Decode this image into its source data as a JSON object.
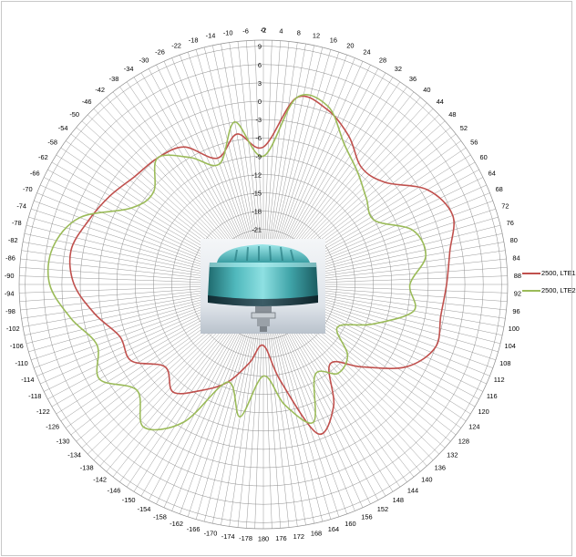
{
  "chart_data": {
    "type": "polar-line",
    "angle_labels": [
      "0",
      "4",
      "8",
      "12",
      "16",
      "20",
      "24",
      "28",
      "32",
      "36",
      "40",
      "44",
      "48",
      "52",
      "56",
      "60",
      "64",
      "68",
      "72",
      "76",
      "80",
      "84",
      "88",
      "92",
      "96",
      "100",
      "104",
      "108",
      "112",
      "116",
      "120",
      "124",
      "128",
      "132",
      "136",
      "140",
      "144",
      "148",
      "152",
      "156",
      "160",
      "164",
      "168",
      "172",
      "176",
      "180",
      "-178",
      "-174",
      "-170",
      "-166",
      "-162",
      "-158",
      "-154",
      "-150",
      "-146",
      "-142",
      "-138",
      "-134",
      "-130",
      "-126",
      "-122",
      "-118",
      "-114",
      "-110",
      "-106",
      "-102",
      "-98",
      "-94",
      "-90",
      "-86",
      "-82",
      "-78",
      "-74",
      "-70",
      "-66",
      "-62",
      "-58",
      "-54",
      "-50",
      "-46",
      "-42",
      "-38",
      "-34",
      "-30",
      "-26",
      "-22",
      "-18",
      "-14",
      "-10",
      "-6",
      "-2"
    ],
    "radial_ticks": [
      "9",
      "6",
      "3",
      "0",
      "-3",
      "-6",
      "-9",
      "-12",
      "-15",
      "-18",
      "-21"
    ],
    "radial_range": [
      -30,
      10
    ],
    "grid": true,
    "legend_position": "right",
    "series": [
      {
        "name": "2500, LTE1",
        "color": "#c0504d",
        "theta": [
          0,
          10,
          20,
          30,
          40,
          50,
          60,
          70,
          80,
          90,
          100,
          110,
          120,
          130,
          140,
          150,
          160,
          170,
          180,
          190,
          200,
          210,
          220,
          230,
          240,
          250,
          260,
          270,
          280,
          290,
          300,
          310,
          320,
          330,
          340,
          350,
          360
        ],
        "r": [
          -7.5,
          1,
          0.5,
          -2,
          -5,
          -4,
          1,
          3,
          1,
          0,
          -0.5,
          0,
          -3,
          -9,
          -13,
          -7,
          -4,
          -14,
          -20,
          -17,
          -13,
          -10,
          -7,
          -9,
          -5,
          -5,
          -2,
          1,
          2,
          0.5,
          -1,
          -2.5,
          -3,
          -4,
          -8,
          -5,
          -7.5
        ]
      },
      {
        "name": "2500, LTE2",
        "color": "#9bbb59",
        "theta": [
          0,
          10,
          20,
          30,
          40,
          50,
          60,
          70,
          80,
          90,
          100,
          110,
          120,
          130,
          140,
          150,
          160,
          170,
          180,
          190,
          200,
          210,
          220,
          230,
          240,
          250,
          260,
          270,
          280,
          290,
          300,
          310,
          320,
          330,
          340,
          350,
          360
        ],
        "r": [
          -9,
          1,
          1,
          -3.5,
          -6,
          -8,
          -9,
          -4,
          -3,
          -6,
          -5,
          -11,
          -16,
          -12,
          -11,
          -13,
          -6,
          -10,
          -15,
          -8,
          -13,
          -4,
          0.5,
          -3,
          1,
          -1,
          2,
          5,
          5,
          2,
          -5,
          -6.5,
          -3,
          -6,
          -9,
          -3,
          -9
        ]
      }
    ]
  },
  "image": {
    "subject": "antenna"
  }
}
